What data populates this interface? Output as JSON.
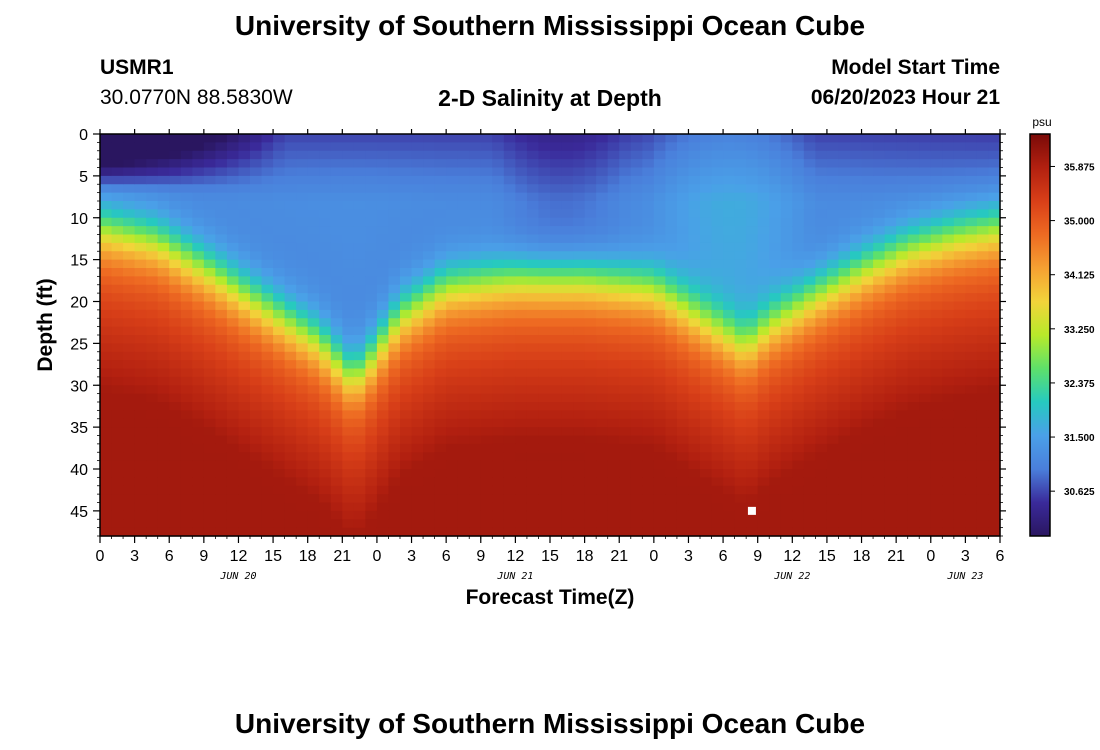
{
  "page": {
    "title": "University of Southern Mississippi Ocean Cube",
    "footer_title": "University of Southern Mississippi Ocean Cube",
    "station_id": "USMR1",
    "station_coords": "30.0770N  88.5830W",
    "subtitle": "2-D Salinity at Depth",
    "model_start_label": "Model Start Time",
    "model_start_value": "06/20/2023 Hour 21"
  },
  "chart_data": {
    "type": "heatmap",
    "title": "2-D Salinity at Depth",
    "xlabel": "Forecast Time(Z)",
    "ylabel": "Depth (ft)",
    "x_tick_labels": [
      "0",
      "3",
      "6",
      "9",
      "12",
      "15",
      "18",
      "21",
      "0",
      "3",
      "6",
      "9",
      "12",
      "15",
      "18",
      "21",
      "0",
      "3",
      "6",
      "9",
      "12",
      "15",
      "18",
      "21",
      "0",
      "3",
      "6"
    ],
    "x_tick_hours": [
      0,
      3,
      6,
      9,
      12,
      15,
      18,
      21,
      24,
      27,
      30,
      33,
      36,
      39,
      42,
      45,
      48,
      51,
      54,
      57,
      60,
      63,
      66,
      69,
      72,
      75,
      78
    ],
    "date_labels": [
      {
        "text": "JUN 20",
        "hour": 12
      },
      {
        "text": "JUN 21",
        "hour": 36
      },
      {
        "text": "JUN 22",
        "hour": 60
      },
      {
        "text": "JUN 23",
        "hour": 75
      }
    ],
    "xlim": [
      0,
      78
    ],
    "y_ticks": [
      0,
      5,
      10,
      15,
      20,
      25,
      30,
      35,
      40,
      45
    ],
    "ylim": [
      0,
      48
    ],
    "y_inverted": true,
    "colorbar": {
      "unit": "psu",
      "ticks": [
        "35.875",
        "35.000",
        "34.125",
        "33.250",
        "32.375",
        "31.500",
        "30.625"
      ],
      "tick_values": [
        35.875,
        35.0,
        34.125,
        33.25,
        32.375,
        31.5,
        30.625
      ],
      "range": [
        29.9,
        36.4
      ],
      "colors": [
        "#2a1660",
        "#3a2a9a",
        "#4a7fdb",
        "#4aa0e8",
        "#26c9c0",
        "#5ee06a",
        "#b8ea2a",
        "#f2d43a",
        "#f5a032",
        "#ee6a22",
        "#d83f18",
        "#b22010",
        "#7a0a08"
      ]
    },
    "halocline_depth_ft": [
      {
        "hour": 0,
        "depth": 10.5
      },
      {
        "hour": 5,
        "depth": 12
      },
      {
        "hour": 10,
        "depth": 16
      },
      {
        "hour": 15,
        "depth": 20.5
      },
      {
        "hour": 19,
        "depth": 24
      },
      {
        "hour": 22,
        "depth": 28.5
      },
      {
        "hour": 23.5,
        "depth": 26
      },
      {
        "hour": 26,
        "depth": 21
      },
      {
        "hour": 30,
        "depth": 17.5
      },
      {
        "hour": 36,
        "depth": 16.5
      },
      {
        "hour": 42,
        "depth": 16.5
      },
      {
        "hour": 48,
        "depth": 17.5
      },
      {
        "hour": 52,
        "depth": 21
      },
      {
        "hour": 56,
        "depth": 24.5
      },
      {
        "hour": 58,
        "depth": 22
      },
      {
        "hour": 62,
        "depth": 18.5
      },
      {
        "hour": 66,
        "depth": 15.5
      },
      {
        "hour": 70,
        "depth": 13
      },
      {
        "hour": 74,
        "depth": 11.5
      },
      {
        "hour": 78,
        "depth": 10.5
      }
    ],
    "surface_fresh_patch": {
      "hour_end": 12,
      "depth_end": 4,
      "min_salinity": 30.0
    },
    "marker": {
      "hour": 56.5,
      "depth": 45
    }
  }
}
